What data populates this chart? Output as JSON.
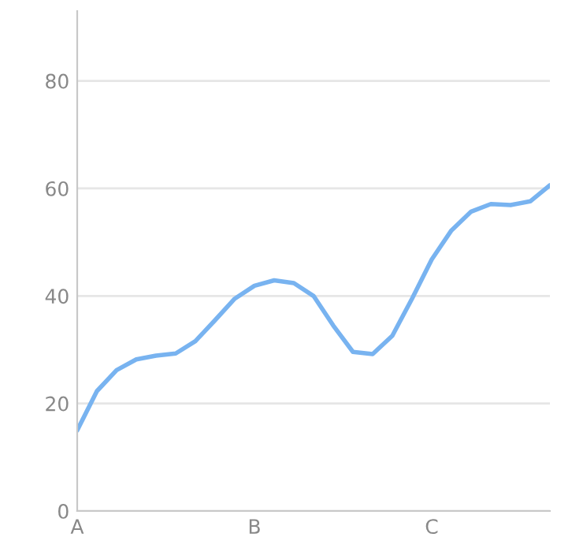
{
  "chart_data": {
    "type": "line",
    "categories": [
      "A",
      null,
      null,
      null,
      null,
      null,
      null,
      null,
      null,
      "B",
      null,
      null,
      null,
      null,
      null,
      null,
      null,
      null,
      "C",
      null,
      null,
      null,
      null,
      null,
      null
    ],
    "series": [
      {
        "color": "#78b3f0",
        "values": [
          15,
          22.3,
          26.2,
          28.2,
          28.9,
          29.3,
          31.6,
          35.5,
          39.5,
          41.9,
          42.9,
          42.4,
          40,
          34.5,
          29.6,
          29.2,
          32.6,
          39.5,
          46.8,
          52.2,
          55.7,
          57.1,
          56.9,
          57.6,
          60.6
        ]
      }
    ],
    "ylim": [
      0,
      93
    ],
    "yticks": [
      0,
      20,
      40,
      60,
      80
    ],
    "grid": "y",
    "legend": false,
    "marker": "none",
    "line_style": "solid"
  }
}
